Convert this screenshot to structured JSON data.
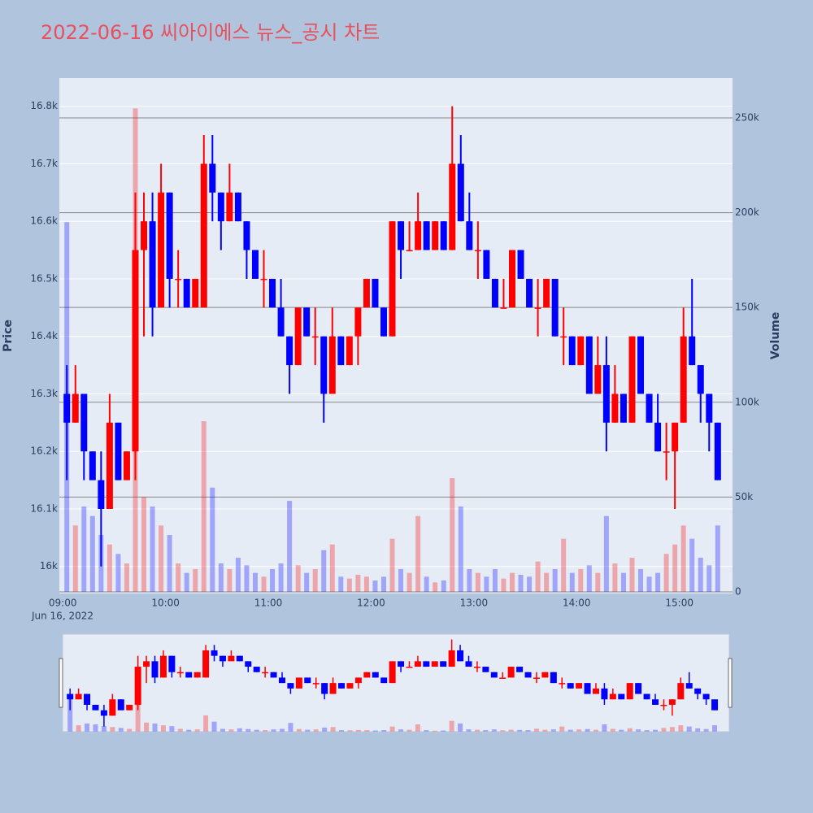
{
  "chart_data": {
    "type": "candlestick",
    "title": "2022-06-16 씨아이에스 뉴스_공시 차트",
    "ylabel": "Price",
    "y2label": "Volume",
    "x_date_label": "Jun 16, 2022",
    "up_color": "#ff0000",
    "down_color": "#0000ff",
    "rangeslider": true,
    "x": [
      "09:00",
      "09:05",
      "09:10",
      "09:15",
      "09:20",
      "09:25",
      "09:30",
      "09:35",
      "09:40",
      "09:45",
      "09:50",
      "09:55",
      "10:00",
      "10:05",
      "10:10",
      "10:15",
      "10:20",
      "10:25",
      "10:30",
      "10:35",
      "10:40",
      "10:45",
      "10:50",
      "10:55",
      "11:00",
      "11:05",
      "11:10",
      "11:15",
      "11:20",
      "11:25",
      "11:30",
      "11:35",
      "11:40",
      "11:45",
      "11:50",
      "11:55",
      "12:00",
      "12:05",
      "12:10",
      "12:15",
      "12:20",
      "12:25",
      "12:30",
      "12:35",
      "12:40",
      "12:45",
      "12:50",
      "12:55",
      "13:00",
      "13:05",
      "13:10",
      "13:15",
      "13:20",
      "13:25",
      "13:30",
      "13:35",
      "13:40",
      "13:45",
      "13:50",
      "13:55",
      "14:00",
      "14:05",
      "14:10",
      "14:15",
      "14:20",
      "14:25",
      "14:30",
      "14:35",
      "14:40",
      "14:45",
      "14:50",
      "14:55",
      "15:00",
      "15:05",
      "15:10",
      "15:15",
      "15:20"
    ],
    "open": [
      16300,
      16250,
      16300,
      16200,
      16150,
      16100,
      16250,
      16150,
      16200,
      16550,
      16600,
      16450,
      16650,
      16500,
      16500,
      16450,
      16450,
      16700,
      16650,
      16600,
      16650,
      16600,
      16550,
      16500,
      16500,
      16450,
      16400,
      16350,
      16450,
      16400,
      16400,
      16300,
      16400,
      16350,
      16400,
      16450,
      16500,
      16450,
      16400,
      16600,
      16550,
      16550,
      16600,
      16550,
      16600,
      16550,
      16700,
      16600,
      16550,
      16550,
      16500,
      16450,
      16450,
      16550,
      16500,
      16450,
      16450,
      16500,
      16400,
      16400,
      16350,
      16400,
      16300,
      16350,
      16250,
      16300,
      16250,
      16400,
      16300,
      16250,
      16200,
      16200,
      16250,
      16400,
      16350,
      16300,
      16250
    ],
    "high": [
      16350,
      16350,
      16300,
      16200,
      16200,
      16300,
      16250,
      16200,
      16650,
      16650,
      16650,
      16700,
      16650,
      16550,
      16500,
      16500,
      16750,
      16750,
      16650,
      16700,
      16650,
      16600,
      16550,
      16550,
      16500,
      16500,
      16400,
      16450,
      16450,
      16450,
      16400,
      16450,
      16400,
      16400,
      16450,
      16500,
      16500,
      16450,
      16600,
      16600,
      16600,
      16650,
      16600,
      16600,
      16600,
      16800,
      16750,
      16650,
      16600,
      16550,
      16500,
      16500,
      16550,
      16550,
      16500,
      16500,
      16500,
      16500,
      16450,
      16400,
      16400,
      16400,
      16400,
      16400,
      16350,
      16300,
      16400,
      16400,
      16300,
      16300,
      16250,
      16250,
      16450,
      16500,
      16350,
      16300,
      16250
    ],
    "low": [
      16150,
      16250,
      16150,
      16150,
      16000,
      16100,
      16150,
      16150,
      16150,
      16400,
      16400,
      16450,
      16450,
      16450,
      16450,
      16450,
      16450,
      16600,
      16550,
      16600,
      16600,
      16500,
      16500,
      16450,
      16450,
      16400,
      16300,
      16350,
      16400,
      16350,
      16250,
      16300,
      16350,
      16350,
      16350,
      16450,
      16450,
      16400,
      16400,
      16500,
      16550,
      16550,
      16550,
      16550,
      16550,
      16550,
      16600,
      16550,
      16500,
      16500,
      16450,
      16450,
      16450,
      16500,
      16450,
      16400,
      16450,
      16400,
      16350,
      16350,
      16350,
      16300,
      16300,
      16200,
      16250,
      16250,
      16250,
      16300,
      16250,
      16200,
      16150,
      16100,
      16250,
      16350,
      16250,
      16200,
      16150
    ],
    "close": [
      16250,
      16300,
      16200,
      16150,
      16100,
      16250,
      16150,
      16200,
      16550,
      16600,
      16450,
      16650,
      16500,
      16500,
      16450,
      16500,
      16700,
      16650,
      16600,
      16650,
      16600,
      16550,
      16500,
      16500,
      16450,
      16400,
      16350,
      16450,
      16400,
      16400,
      16300,
      16400,
      16350,
      16400,
      16450,
      16500,
      16450,
      16400,
      16600,
      16550,
      16550,
      16600,
      16550,
      16600,
      16550,
      16700,
      16600,
      16550,
      16550,
      16500,
      16450,
      16450,
      16550,
      16500,
      16450,
      16450,
      16500,
      16400,
      16400,
      16350,
      16400,
      16300,
      16350,
      16250,
      16300,
      16250,
      16400,
      16300,
      16250,
      16200,
      16200,
      16250,
      16400,
      16350,
      16300,
      16250,
      16150
    ],
    "volume": [
      195000,
      35000,
      45000,
      40000,
      30000,
      25000,
      20000,
      15000,
      255000,
      50000,
      45000,
      35000,
      30000,
      15000,
      10000,
      12000,
      90000,
      55000,
      15000,
      12000,
      18000,
      14000,
      10000,
      8000,
      12000,
      15000,
      48000,
      14000,
      10000,
      12000,
      22000,
      25000,
      8000,
      7000,
      9000,
      8000,
      6000,
      8000,
      28000,
      12000,
      10000,
      40000,
      8000,
      5000,
      6000,
      60000,
      45000,
      12000,
      10000,
      8000,
      12000,
      7000,
      10000,
      9000,
      8000,
      16000,
      10000,
      12000,
      28000,
      10000,
      12000,
      14000,
      10000,
      40000,
      15000,
      10000,
      18000,
      12000,
      8000,
      10000,
      20000,
      25000,
      35000,
      28000,
      18000,
      14000,
      35000
    ],
    "xlim": [
      "08:58",
      "15:31"
    ],
    "xticks": [
      "09:00",
      "10:00",
      "11:00",
      "12:00",
      "13:00",
      "14:00",
      "15:00"
    ],
    "ylim": [
      15953,
      16849
    ],
    "yticks": [
      {
        "value": 16000,
        "label": "16k"
      },
      {
        "value": 16100,
        "label": "16.1k"
      },
      {
        "value": 16200,
        "label": "16.2k"
      },
      {
        "value": 16300,
        "label": "16.3k"
      },
      {
        "value": 16400,
        "label": "16.4k"
      },
      {
        "value": 16500,
        "label": "16.5k"
      },
      {
        "value": 16600,
        "label": "16.6k"
      },
      {
        "value": 16700,
        "label": "16.7k"
      },
      {
        "value": 16800,
        "label": "16.8k"
      }
    ],
    "y2lim": [
      -860,
      271000
    ],
    "y2ticks": [
      0,
      {
        "value": 50000,
        "label": "50k"
      },
      {
        "value": 100000,
        "label": "100k"
      },
      {
        "value": 150000,
        "label": "150k"
      },
      {
        "value": 200000,
        "label": "200k"
      },
      {
        "value": 250000,
        "label": "250k"
      }
    ]
  }
}
